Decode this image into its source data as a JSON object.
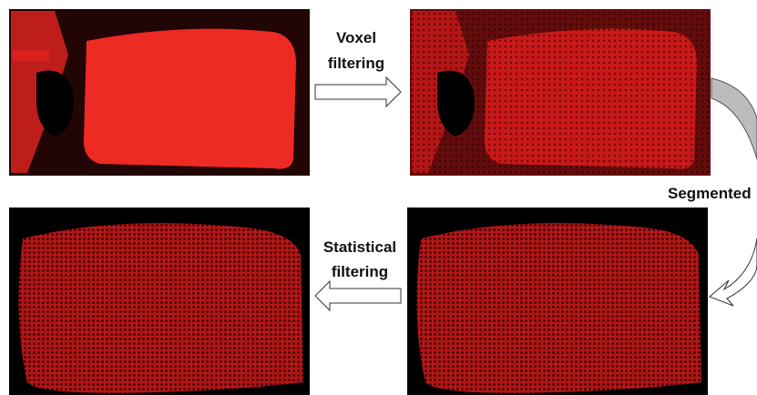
{
  "steps": [
    {
      "lines": [
        "Voxel",
        "filtering"
      ]
    },
    {
      "lines": [
        "Segmented"
      ]
    },
    {
      "lines": [
        "Statistical",
        "filtering"
      ]
    }
  ]
}
